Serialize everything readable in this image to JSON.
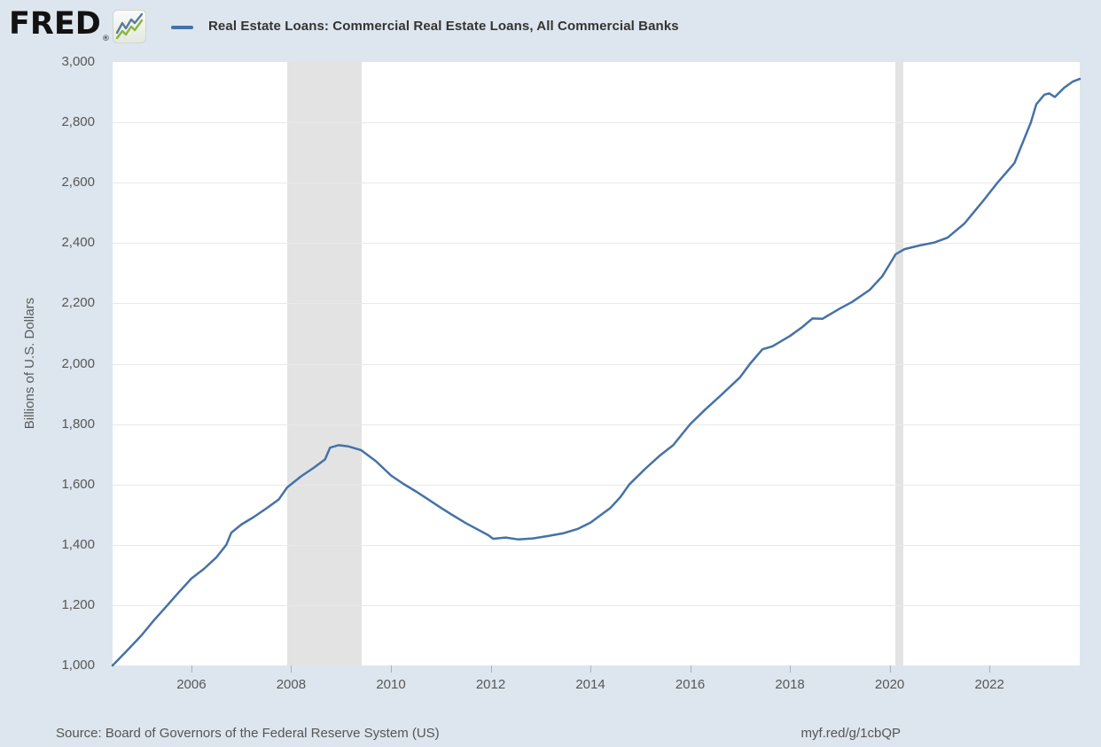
{
  "header": {
    "logo_text": "FRED",
    "registered_mark": "®",
    "series_title": "Real Estate Loans: Commercial Real Estate Loans, All Commercial Banks"
  },
  "footer": {
    "source_text": "Source: Board of Governors of the Federal Reserve System (US)",
    "link_text": "myf.red/g/1cbQP"
  },
  "colors": {
    "page_bg": "#dde6ee",
    "plot_bg": "#ffffff",
    "line": "#4572a7",
    "gridline": "#e9e9e9",
    "recession_band": "#e3e3e3",
    "tick_text": "#575757",
    "logo_icon_green": "#8ab53e",
    "logo_icon_blue": "#5b7a9c"
  },
  "chart_data": {
    "type": "line",
    "title": "Real Estate Loans: Commercial Real Estate Loans, All Commercial Banks",
    "xlabel": "",
    "ylabel": "Billions of U.S. Dollars",
    "xlim": [
      2004.42,
      2023.81
    ],
    "ylim": [
      1000,
      3000
    ],
    "grid": "horizontal-only",
    "legend_position": "top-left-header",
    "line_color": "#4572a7",
    "y_ticks": [
      {
        "value": 1000,
        "label": "1,000"
      },
      {
        "value": 1200,
        "label": "1,200"
      },
      {
        "value": 1400,
        "label": "1,400"
      },
      {
        "value": 1600,
        "label": "1,600"
      },
      {
        "value": 1800,
        "label": "1,800"
      },
      {
        "value": 2000,
        "label": "2,000"
      },
      {
        "value": 2200,
        "label": "2,200"
      },
      {
        "value": 2400,
        "label": "2,400"
      },
      {
        "value": 2600,
        "label": "2,600"
      },
      {
        "value": 2800,
        "label": "2,800"
      },
      {
        "value": 3000,
        "label": "3,000"
      }
    ],
    "x_ticks": [
      {
        "value": 2006,
        "label": "2006"
      },
      {
        "value": 2008,
        "label": "2008"
      },
      {
        "value": 2010,
        "label": "2010"
      },
      {
        "value": 2012,
        "label": "2012"
      },
      {
        "value": 2014,
        "label": "2014"
      },
      {
        "value": 2016,
        "label": "2016"
      },
      {
        "value": 2018,
        "label": "2018"
      },
      {
        "value": 2020,
        "label": "2020"
      },
      {
        "value": 2022,
        "label": "2022"
      }
    ],
    "recession_bands": [
      {
        "start": 2007.92,
        "end": 2009.42
      },
      {
        "start": 2020.12,
        "end": 2020.28
      }
    ],
    "series": [
      {
        "name": "Real Estate Loans: Commercial Real Estate Loans, All Commercial Banks",
        "units": "Billions of U.S. Dollars",
        "points": [
          [
            2004.42,
            1000
          ],
          [
            2004.7,
            1048
          ],
          [
            2005.0,
            1100
          ],
          [
            2005.25,
            1150
          ],
          [
            2005.52,
            1200
          ],
          [
            2005.75,
            1243
          ],
          [
            2006.0,
            1288
          ],
          [
            2006.25,
            1320
          ],
          [
            2006.5,
            1358
          ],
          [
            2006.7,
            1400
          ],
          [
            2006.8,
            1440
          ],
          [
            2007.0,
            1467
          ],
          [
            2007.25,
            1492
          ],
          [
            2007.5,
            1520
          ],
          [
            2007.75,
            1550
          ],
          [
            2007.92,
            1590
          ],
          [
            2008.2,
            1627
          ],
          [
            2008.45,
            1655
          ],
          [
            2008.68,
            1683
          ],
          [
            2008.78,
            1722
          ],
          [
            2008.95,
            1730
          ],
          [
            2009.15,
            1726
          ],
          [
            2009.4,
            1714
          ],
          [
            2009.7,
            1677
          ],
          [
            2010.0,
            1630
          ],
          [
            2010.25,
            1602
          ],
          [
            2010.5,
            1577
          ],
          [
            2010.75,
            1550
          ],
          [
            2011.0,
            1523
          ],
          [
            2011.25,
            1497
          ],
          [
            2011.5,
            1472
          ],
          [
            2011.75,
            1450
          ],
          [
            2011.95,
            1432
          ],
          [
            2012.05,
            1420
          ],
          [
            2012.3,
            1424
          ],
          [
            2012.55,
            1418
          ],
          [
            2012.85,
            1421
          ],
          [
            2013.15,
            1429
          ],
          [
            2013.45,
            1438
          ],
          [
            2013.75,
            1453
          ],
          [
            2014.0,
            1473
          ],
          [
            2014.4,
            1522
          ],
          [
            2014.6,
            1558
          ],
          [
            2014.78,
            1600
          ],
          [
            2015.1,
            1652
          ],
          [
            2015.4,
            1697
          ],
          [
            2015.66,
            1730
          ],
          [
            2016.0,
            1800
          ],
          [
            2016.3,
            1848
          ],
          [
            2016.6,
            1893
          ],
          [
            2017.0,
            1955
          ],
          [
            2017.2,
            2000
          ],
          [
            2017.45,
            2048
          ],
          [
            2017.65,
            2058
          ],
          [
            2018.0,
            2092
          ],
          [
            2018.25,
            2122
          ],
          [
            2018.45,
            2150
          ],
          [
            2018.65,
            2149
          ],
          [
            2019.0,
            2183
          ],
          [
            2019.25,
            2205
          ],
          [
            2019.6,
            2245
          ],
          [
            2019.85,
            2290
          ],
          [
            2020.0,
            2330
          ],
          [
            2020.12,
            2363
          ],
          [
            2020.3,
            2380
          ],
          [
            2020.6,
            2392
          ],
          [
            2020.9,
            2402
          ],
          [
            2021.16,
            2418
          ],
          [
            2021.5,
            2465
          ],
          [
            2021.9,
            2545
          ],
          [
            2022.16,
            2600
          ],
          [
            2022.5,
            2665
          ],
          [
            2022.83,
            2800
          ],
          [
            2022.94,
            2860
          ],
          [
            2023.1,
            2892
          ],
          [
            2023.2,
            2896
          ],
          [
            2023.31,
            2884
          ],
          [
            2023.5,
            2915
          ],
          [
            2023.67,
            2935
          ],
          [
            2023.81,
            2944
          ]
        ]
      }
    ]
  }
}
